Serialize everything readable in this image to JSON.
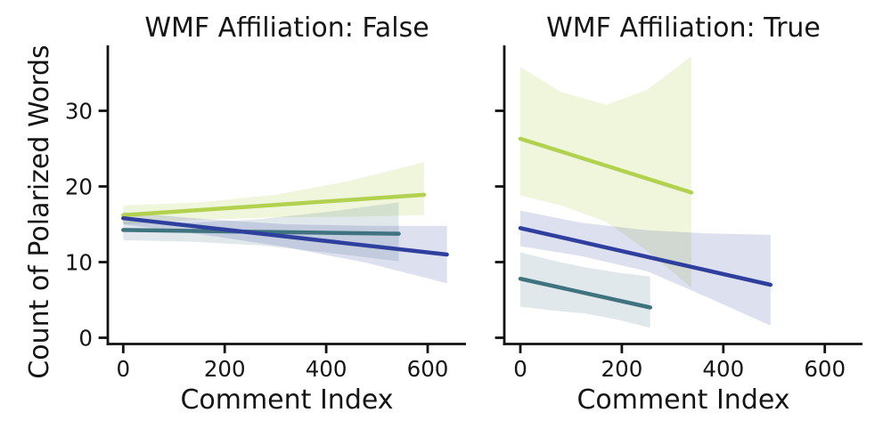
{
  "figure": {
    "background": "#ffffff",
    "ylabel": "Count of Polarized Words",
    "text_color": "#151515",
    "axis_color": "#111111"
  },
  "chart_data": [
    {
      "type": "line",
      "title": "WMF Affiliation: False",
      "xlabel": "Comment Index",
      "ylabel": "Count of Polarized Words",
      "xlim": [
        -32,
        673
      ],
      "ylim": [
        -0.85,
        38.6
      ],
      "x_ticks": [
        0,
        200,
        400,
        600
      ],
      "y_ticks": [
        0,
        10,
        20,
        30
      ],
      "grid": false,
      "legend": "none",
      "series": [
        {
          "name": "green",
          "color": "#b2d14e",
          "band_alpha": 0.2,
          "x": [
            0,
            593
          ],
          "y": [
            16.2,
            18.9
          ],
          "band": {
            "x": [
              0,
              150,
              300,
              450,
              593
            ],
            "upper": [
              17.5,
              17.9,
              18.9,
              20.8,
              23.2
            ],
            "lower": [
              15.0,
              15.6,
              15.9,
              16.0,
              16.2
            ]
          }
        },
        {
          "name": "teal",
          "color": "#3f7380",
          "band_alpha": 0.16,
          "x": [
            0,
            543
          ],
          "y": [
            14.25,
            13.75
          ],
          "band": {
            "x": [
              0,
              136,
              272,
              408,
              543
            ],
            "upper": [
              15.4,
              15.2,
              15.7,
              16.7,
              17.9
            ],
            "lower": [
              12.9,
              12.7,
              12.2,
              11.2,
              10.1
            ]
          }
        },
        {
          "name": "blue",
          "color": "#2e3f9e",
          "band_alpha": 0.16,
          "x": [
            0,
            638
          ],
          "y": [
            15.8,
            11.0
          ],
          "band": {
            "x": [
              0,
              160,
              320,
              480,
              638
            ],
            "upper": [
              16.6,
              15.7,
              15.0,
              14.8,
              14.8
            ],
            "lower": [
              15.0,
              13.6,
              12.0,
              9.9,
              7.2
            ]
          }
        }
      ]
    },
    {
      "type": "line",
      "title": "WMF Affiliation: True",
      "xlabel": "Comment Index",
      "ylabel": "Count of Polarized Words",
      "xlim": [
        -32,
        673
      ],
      "ylim": [
        -0.85,
        38.6
      ],
      "x_ticks": [
        0,
        200,
        400,
        600
      ],
      "y_ticks": [
        0,
        10,
        20,
        30
      ],
      "grid": false,
      "legend": "none",
      "series": [
        {
          "name": "green",
          "color": "#b2d14e",
          "band_alpha": 0.2,
          "x": [
            0,
            337
          ],
          "y": [
            26.3,
            19.2
          ],
          "band": {
            "x": [
              0,
              80,
              170,
              250,
              337
            ],
            "upper": [
              35.8,
              32.5,
              30.8,
              32.8,
              37.2
            ],
            "lower": [
              18.8,
              17.5,
              15.3,
              11.5,
              6.6
            ]
          }
        },
        {
          "name": "teal",
          "color": "#3f7380",
          "band_alpha": 0.16,
          "x": [
            0,
            256
          ],
          "y": [
            7.8,
            4.0
          ],
          "band": {
            "x": [
              0,
              64,
              128,
              192,
              256
            ],
            "upper": [
              11.3,
              10.2,
              9.3,
              8.6,
              8.1
            ],
            "lower": [
              4.1,
              3.6,
              3.2,
              2.4,
              1.3
            ]
          }
        },
        {
          "name": "blue",
          "color": "#2e3f9e",
          "band_alpha": 0.16,
          "x": [
            0,
            493
          ],
          "y": [
            14.5,
            7.0
          ],
          "band": {
            "x": [
              0,
              120,
              250,
              370,
              493
            ],
            "upper": [
              16.8,
              15.2,
              14.2,
              13.8,
              13.6
            ],
            "lower": [
              12.1,
              10.8,
              8.8,
              5.3,
              1.6
            ]
          }
        }
      ]
    }
  ]
}
